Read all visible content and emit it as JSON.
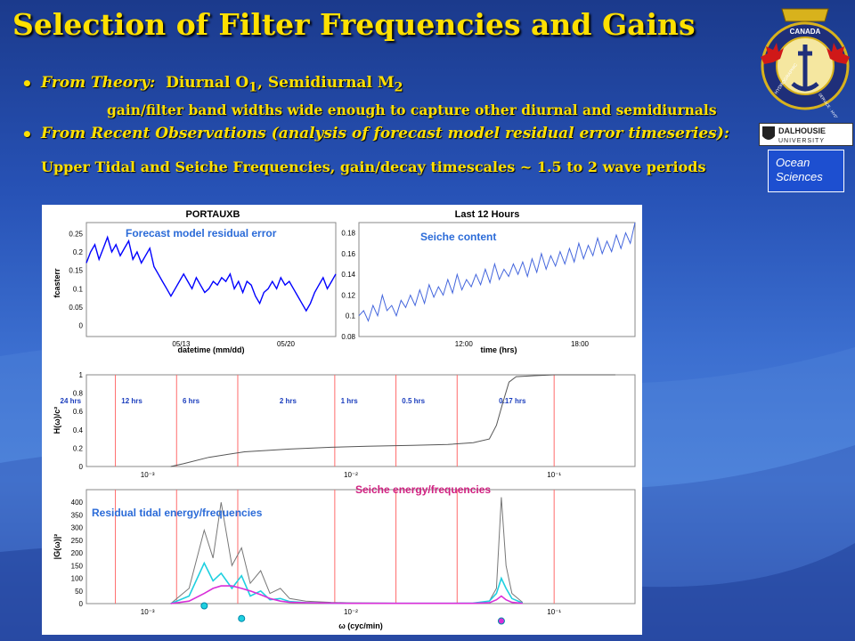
{
  "slide": {
    "title": "Selection of Filter Frequencies and Gains",
    "bullets": [
      {
        "lead": "From Theory:",
        "rest": "Diurnal O",
        "sub1": "1",
        "mid": ", Semidiurnal M",
        "sub2": "2"
      },
      {
        "text": "gain/filter band widths wide enough to capture other diurnal and semidiurnals"
      },
      {
        "lead": "From Recent Observations (analysis of forecast model residual error timeseries):"
      },
      {
        "text": "Upper Tidal and Seiche Frequencies,  gain/decay timescales ~ 1.5 to 2 wave periods"
      }
    ]
  },
  "logos": {
    "crest_text_top": "CANADA",
    "crest_text_left": "HYDROGRAPHIC",
    "crest_text_right": "SERVICE · HYDROGRAPHIQUE",
    "dalhousie": "DALHOUSIE",
    "dalhousie_sub": "UNIVERSITY",
    "ocean_line1": "Ocean",
    "ocean_line2": "Sciences"
  },
  "annotations": {
    "forecast": "Forecast model residual error",
    "seiche_content": "Seiche content",
    "seiche_energy": "Seiche energy/frequencies",
    "residual_tidal": "Residual tidal energy/frequencies"
  },
  "chart_data": [
    {
      "type": "line",
      "title": "PORTAUXB",
      "xlabel": "datetime (mm/dd)",
      "ylabel": "fcasterr",
      "xtick_labels": [
        "05/13",
        "05/20"
      ],
      "yticks": [
        0,
        0.05,
        0.1,
        0.15,
        0.2,
        0.25
      ],
      "ylim": [
        -0.03,
        0.28
      ],
      "color": "#0000ff",
      "series": [
        {
          "values": [
            0.17,
            0.2,
            0.22,
            0.18,
            0.21,
            0.24,
            0.2,
            0.22,
            0.19,
            0.21,
            0.23,
            0.18,
            0.2,
            0.17,
            0.19,
            0.21,
            0.16,
            0.14,
            0.12,
            0.1,
            0.08,
            0.1,
            0.12,
            0.14,
            0.12,
            0.1,
            0.13,
            0.11,
            0.09,
            0.1,
            0.12,
            0.11,
            0.13,
            0.12,
            0.14,
            0.1,
            0.12,
            0.09,
            0.12,
            0.11,
            0.08,
            0.06,
            0.09,
            0.1,
            0.12,
            0.1,
            0.13,
            0.11,
            0.12,
            0.1,
            0.08,
            0.06,
            0.04,
            0.06,
            0.09,
            0.11,
            0.13,
            0.1,
            0.12,
            0.14
          ]
        }
      ]
    },
    {
      "type": "line",
      "title": "Last 12 Hours",
      "xlabel": "time (hrs)",
      "xtick_labels": [
        "12:00",
        "18:00"
      ],
      "yticks": [
        0.08,
        0.1,
        0.12,
        0.14,
        0.16,
        0.18
      ],
      "ylim": [
        0.08,
        0.19
      ],
      "color": "#4466dd",
      "series": [
        {
          "values": [
            0.1,
            0.105,
            0.095,
            0.11,
            0.1,
            0.12,
            0.105,
            0.11,
            0.1,
            0.115,
            0.108,
            0.12,
            0.11,
            0.125,
            0.112,
            0.13,
            0.118,
            0.128,
            0.12,
            0.135,
            0.122,
            0.14,
            0.125,
            0.135,
            0.128,
            0.14,
            0.13,
            0.145,
            0.132,
            0.15,
            0.135,
            0.145,
            0.138,
            0.15,
            0.14,
            0.152,
            0.138,
            0.155,
            0.142,
            0.16,
            0.145,
            0.158,
            0.148,
            0.162,
            0.15,
            0.165,
            0.152,
            0.17,
            0.155,
            0.168,
            0.158,
            0.175,
            0.16,
            0.172,
            0.162,
            0.178,
            0.165,
            0.18,
            0.17,
            0.19
          ]
        }
      ]
    },
    {
      "type": "line",
      "ylabel": "H(ω)/c²",
      "xscale": "log",
      "xlim": [
        0.0005,
        0.25
      ],
      "ylim": [
        0,
        1
      ],
      "yticks": [
        0,
        0.2,
        0.4,
        0.6,
        0.8,
        1
      ],
      "xtick_labels": [
        "10⁻³",
        "10⁻²",
        "10⁻¹"
      ],
      "period_markers": [
        "24 hrs",
        "12 hrs",
        "6 hrs",
        "2 hrs",
        "1 hrs",
        "0.5 hrs",
        "0.17 hrs"
      ],
      "marker_color": "#ff4444",
      "x": [
        0.0013,
        0.0015,
        0.002,
        0.003,
        0.005,
        0.008,
        0.012,
        0.02,
        0.03,
        0.04,
        0.048,
        0.052,
        0.056,
        0.06,
        0.065,
        0.08,
        0.1,
        0.15,
        0.2
      ],
      "series": [
        {
          "values": [
            0.0,
            0.03,
            0.1,
            0.16,
            0.19,
            0.21,
            0.22,
            0.23,
            0.24,
            0.26,
            0.3,
            0.45,
            0.7,
            0.92,
            0.98,
            0.99,
            1.0,
            1.0,
            1.0
          ]
        }
      ]
    },
    {
      "type": "line",
      "ylabel": "|G(ω)|²",
      "xlabel": "ω (cyc/min)",
      "xscale": "log",
      "xlim": [
        0.0005,
        0.25
      ],
      "ylim": [
        0,
        450
      ],
      "yticks": [
        0,
        50,
        100,
        150,
        200,
        250,
        300,
        350,
        400
      ],
      "xtick_labels": [
        "10⁻³",
        "10⁻²",
        "10⁻¹"
      ],
      "series": [
        {
          "values": [
            0,
            60,
            290,
            180,
            400,
            150,
            220,
            80,
            130,
            40,
            60,
            20,
            10,
            5,
            3,
            2,
            1,
            1,
            2,
            10,
            60,
            420,
            150,
            40,
            5
          ]
        },
        {
          "values": [
            0,
            30,
            160,
            90,
            120,
            60,
            110,
            30,
            50,
            15,
            20,
            8,
            4,
            2,
            1,
            1,
            1,
            1,
            2,
            10,
            40,
            100,
            60,
            20,
            2
          ]
        },
        {
          "values": [
            0,
            10,
            40,
            60,
            70,
            70,
            60,
            50,
            35,
            20,
            10,
            5,
            3,
            2,
            1,
            1,
            1,
            1,
            1,
            3,
            15,
            30,
            15,
            5,
            1
          ]
        }
      ],
      "x": [
        0.0013,
        0.0016,
        0.0019,
        0.0021,
        0.0023,
        0.0026,
        0.0029,
        0.0032,
        0.0036,
        0.004,
        0.0045,
        0.005,
        0.006,
        0.008,
        0.01,
        0.015,
        0.02,
        0.03,
        0.04,
        0.048,
        0.052,
        0.055,
        0.058,
        0.062,
        0.07
      ]
    }
  ]
}
